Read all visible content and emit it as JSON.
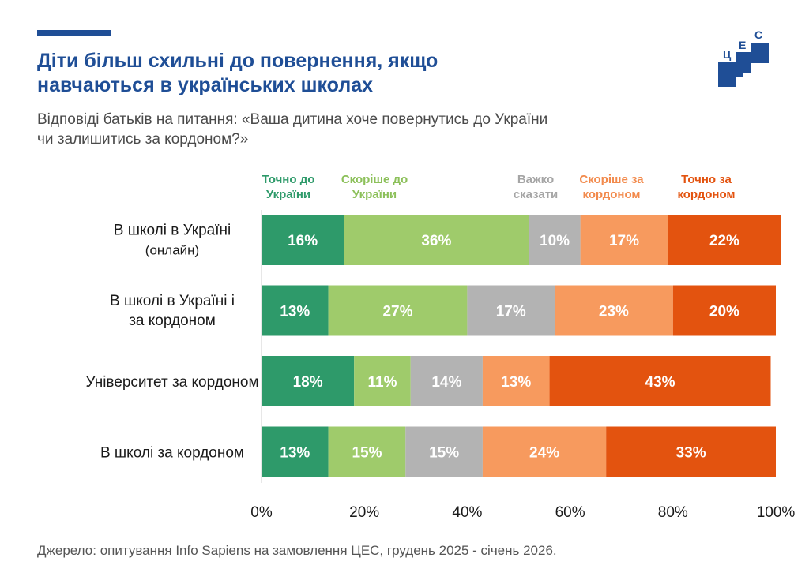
{
  "header": {
    "title_line1": "Діти більш схильні до повернення, якщо",
    "title_line2": "навчаються в українських школах",
    "subtitle_line1": "Відповіді батьків на питання: «Ваша дитина хоче повернутись до України",
    "subtitle_line2": "чи залишитись за кордоном?»"
  },
  "logo": {
    "letters": [
      "Ц",
      "Е",
      "С"
    ],
    "color": "#1f4e96"
  },
  "source": "Джерело: опитування Info Sapiens на замовлення ЦЕС, грудень 2025 - січень 2026.",
  "chart_data": {
    "type": "bar",
    "orientation": "horizontal",
    "stacked": true,
    "categories": [
      [
        "В школі в Україні",
        "(онлайн)"
      ],
      [
        "В школі в Україні і",
        "за кордоном"
      ],
      [
        "Університет за кордоном"
      ],
      [
        "В школі за кордоном"
      ]
    ],
    "series": [
      {
        "name": [
          "Точно до",
          "України"
        ],
        "color": "#2e9a6a",
        "label_color": "#ffffff",
        "legend_color": "#2e9a6a",
        "values": [
          16,
          13,
          18,
          13
        ]
      },
      {
        "name": [
          "Скоріше до",
          "України"
        ],
        "color": "#9fcb6b",
        "label_color": "#ffffff",
        "legend_color": "#8cc05a",
        "values": [
          36,
          27,
          11,
          15
        ]
      },
      {
        "name": [
          "Важко",
          "сказати"
        ],
        "color": "#b3b3b3",
        "label_color": "#ffffff",
        "legend_color": "#a5a5a5",
        "values": [
          10,
          17,
          14,
          15
        ]
      },
      {
        "name": [
          "Скоріше за",
          "кордоном"
        ],
        "color": "#f79a5e",
        "label_color": "#ffffff",
        "legend_color": "#f28a4c",
        "values": [
          17,
          23,
          13,
          24
        ]
      },
      {
        "name": [
          "Точно за",
          "кордоном"
        ],
        "color": "#e3530f",
        "label_color": "#ffffff",
        "legend_color": "#e3530f",
        "values": [
          22,
          20,
          43,
          33
        ]
      }
    ],
    "value_suffix": "%",
    "xlim": [
      0,
      100
    ],
    "xticks": [
      "0%",
      "20%",
      "40%",
      "60%",
      "80%",
      "100%"
    ],
    "legend_position": "top",
    "grid": false
  }
}
